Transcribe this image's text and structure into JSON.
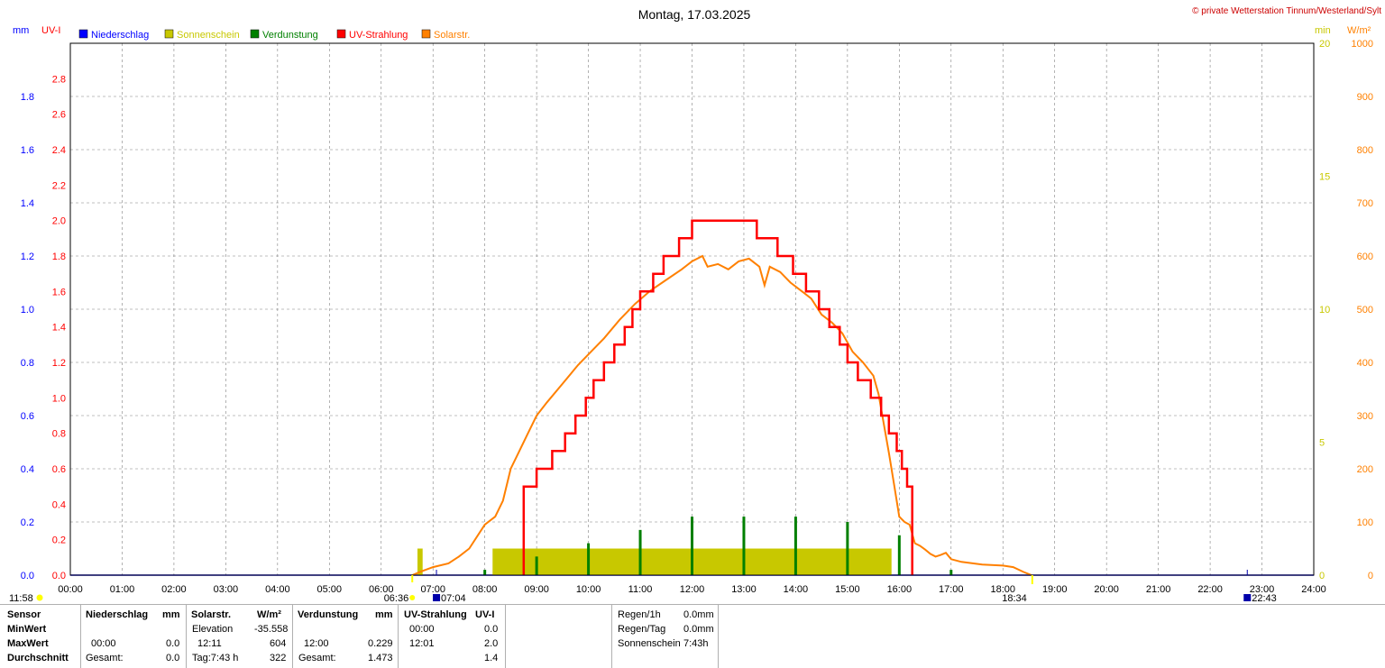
{
  "header": {
    "title": "Montag, 17.03.2025",
    "copyright": "© private Wetterstation Tinnum/Westerland/Sylt"
  },
  "axes": {
    "left_unit_mm": "mm",
    "left_unit_uv": "UV-I",
    "right_unit_min": "min",
    "right_unit_wm2": "W/m²",
    "mm_ticks": [
      "0.2",
      "0.4",
      "0.6",
      "0.8",
      "1.0",
      "1.2",
      "1.4",
      "1.6",
      "1.8"
    ],
    "uv_ticks": [
      "0.0",
      "0.2",
      "0.4",
      "0.6",
      "0.8",
      "1.0",
      "1.2",
      "1.4",
      "1.6",
      "1.8",
      "2.0",
      "2.2",
      "2.4",
      "2.6",
      "2.8"
    ],
    "min_ticks": [
      "0",
      "5",
      "10",
      "15",
      "20"
    ],
    "wm2_ticks": [
      "0",
      "100",
      "200",
      "300",
      "400",
      "500",
      "600",
      "700",
      "800",
      "900",
      "1000"
    ],
    "mm_zero": "0.0",
    "x_ticks": [
      "00:00",
      "01:00",
      "02:00",
      "03:00",
      "04:00",
      "05:00",
      "06:00",
      "07:00",
      "08:00",
      "09:00",
      "10:00",
      "11:00",
      "12:00",
      "13:00",
      "14:00",
      "15:00",
      "16:00",
      "17:00",
      "18:00",
      "19:00",
      "20:00",
      "21:00",
      "22:00",
      "23:00",
      "24:00"
    ]
  },
  "legend": [
    {
      "label": "Niederschlag",
      "color": "#0000ff"
    },
    {
      "label": "Sonnenschein",
      "color": "#c8c800"
    },
    {
      "label": "Verdunstung",
      "color": "#008000"
    },
    {
      "label": "UV-Strahlung",
      "color": "#ff0000"
    },
    {
      "label": "Solarstr.",
      "color": "#ff8000"
    }
  ],
  "markers": {
    "moon_time": "11:58",
    "sunrise": "06:36",
    "moonrise": "07:04",
    "sunset": "18:34",
    "moonset": "22:43"
  },
  "colors": {
    "grid": "#808080",
    "frame": "#000000",
    "mm_axis": "#0000ff",
    "uv_axis": "#ff0000",
    "min_axis": "#c8c800",
    "wm2_axis": "#ff8000"
  },
  "chart_data": {
    "type": "line",
    "title": "Montag, 17.03.2025",
    "x_range": [
      "00:00",
      "24:00"
    ],
    "ylim_mm": [
      0,
      2.0
    ],
    "ylim_uv": [
      0,
      3.0
    ],
    "ylim_sunshine_min": [
      0,
      20
    ],
    "ylim_solar_wm2": [
      0,
      1000
    ],
    "grid": true,
    "legend_position": "top-left",
    "series": [
      {
        "name": "Solarstr.",
        "axis": "W/m²",
        "points": [
          [
            6.6,
            0
          ],
          [
            6.8,
            8
          ],
          [
            7.0,
            15
          ],
          [
            7.3,
            22
          ],
          [
            7.5,
            35
          ],
          [
            7.7,
            50
          ],
          [
            7.9,
            80
          ],
          [
            8.0,
            95
          ],
          [
            8.2,
            110
          ],
          [
            8.35,
            140
          ],
          [
            8.5,
            200
          ],
          [
            8.65,
            230
          ],
          [
            8.8,
            260
          ],
          [
            9.0,
            300
          ],
          [
            9.2,
            325
          ],
          [
            9.5,
            360
          ],
          [
            9.8,
            395
          ],
          [
            10.0,
            415
          ],
          [
            10.3,
            445
          ],
          [
            10.6,
            480
          ],
          [
            10.9,
            510
          ],
          [
            11.2,
            535
          ],
          [
            11.5,
            555
          ],
          [
            11.8,
            575
          ],
          [
            12.0,
            590
          ],
          [
            12.2,
            600
          ],
          [
            12.3,
            580
          ],
          [
            12.5,
            585
          ],
          [
            12.7,
            575
          ],
          [
            12.9,
            590
          ],
          [
            13.1,
            595
          ],
          [
            13.3,
            580
          ],
          [
            13.4,
            545
          ],
          [
            13.5,
            580
          ],
          [
            13.7,
            570
          ],
          [
            13.9,
            550
          ],
          [
            14.1,
            535
          ],
          [
            14.3,
            520
          ],
          [
            14.5,
            490
          ],
          [
            14.7,
            475
          ],
          [
            14.9,
            455
          ],
          [
            15.1,
            420
          ],
          [
            15.3,
            400
          ],
          [
            15.5,
            375
          ],
          [
            15.6,
            340
          ],
          [
            15.7,
            285
          ],
          [
            15.8,
            230
          ],
          [
            15.9,
            170
          ],
          [
            16.0,
            110
          ],
          [
            16.1,
            100
          ],
          [
            16.2,
            95
          ],
          [
            16.3,
            60
          ],
          [
            16.4,
            55
          ],
          [
            16.5,
            48
          ],
          [
            16.6,
            40
          ],
          [
            16.7,
            35
          ],
          [
            16.8,
            38
          ],
          [
            16.9,
            42
          ],
          [
            17.0,
            30
          ],
          [
            17.2,
            25
          ],
          [
            17.6,
            20
          ],
          [
            18.0,
            18
          ],
          [
            18.2,
            15
          ],
          [
            18.4,
            6
          ],
          [
            18.55,
            0
          ]
        ]
      },
      {
        "name": "UV-Strahlung",
        "axis": "UV-I",
        "points": [
          [
            8.75,
            0
          ],
          [
            8.75,
            0.5
          ],
          [
            9.0,
            0.6
          ],
          [
            9.3,
            0.7
          ],
          [
            9.55,
            0.8
          ],
          [
            9.75,
            0.9
          ],
          [
            9.95,
            1.0
          ],
          [
            10.1,
            1.1
          ],
          [
            10.3,
            1.2
          ],
          [
            10.5,
            1.3
          ],
          [
            10.7,
            1.4
          ],
          [
            10.85,
            1.5
          ],
          [
            11.0,
            1.6
          ],
          [
            11.25,
            1.7
          ],
          [
            11.45,
            1.8
          ],
          [
            11.75,
            1.9
          ],
          [
            12.0,
            2.0
          ],
          [
            12.5,
            2.0
          ],
          [
            12.9,
            2.0
          ],
          [
            13.25,
            1.9
          ],
          [
            13.65,
            1.8
          ],
          [
            13.95,
            1.7
          ],
          [
            14.2,
            1.6
          ],
          [
            14.45,
            1.5
          ],
          [
            14.65,
            1.4
          ],
          [
            14.85,
            1.3
          ],
          [
            15.0,
            1.2
          ],
          [
            15.2,
            1.1
          ],
          [
            15.45,
            1.0
          ],
          [
            15.65,
            0.9
          ],
          [
            15.8,
            0.8
          ],
          [
            15.95,
            0.7
          ],
          [
            16.05,
            0.6
          ],
          [
            16.15,
            0.5
          ],
          [
            16.25,
            0.5
          ],
          [
            16.25,
            0
          ]
        ]
      },
      {
        "name": "Sonnenschein",
        "axis": "min",
        "bars": [
          [
            6.7,
            6.8,
            1.0
          ],
          [
            8.15,
            15.85,
            1.0
          ]
        ]
      },
      {
        "name": "Verdunstung",
        "axis": "mm",
        "spikes": [
          [
            8.0,
            0.02
          ],
          [
            9.0,
            0.07
          ],
          [
            10.0,
            0.12
          ],
          [
            11.0,
            0.17
          ],
          [
            12.0,
            0.22
          ],
          [
            13.0,
            0.22
          ],
          [
            14.0,
            0.22
          ],
          [
            15.0,
            0.2
          ],
          [
            16.0,
            0.15
          ],
          [
            17.0,
            0.02
          ]
        ]
      }
    ]
  },
  "table": {
    "headers": {
      "sensor": "Sensor",
      "niederschlag": "Niederschlag",
      "mm1": "mm",
      "solar": "Solarstr.",
      "wm2": "W/m²",
      "verdunstung": "Verdunstung",
      "mm2": "mm",
      "uv": "UV-Strahlung",
      "uvi": "UV-I"
    },
    "rows": {
      "minwert": "MinWert",
      "maxwert": "MaxWert",
      "durchschnitt": "Durchschnitt"
    },
    "solar_elevation_label": "Elevation",
    "solar_elevation_value": "-35.558",
    "uv_min_time": "00:00",
    "uv_min_value": "0.0",
    "nied_max_time": "00:00",
    "nied_max_value": "0.0",
    "solar_max_time": "12:11",
    "solar_max_value": "604",
    "verd_max_time": "12:00",
    "verd_max_value": "0.229",
    "uv_max_time": "12:01",
    "uv_max_value": "2.0",
    "nied_total_label": "Gesamt:",
    "nied_total_value": "0.0",
    "solar_day_label": "Tag:7:43 h",
    "solar_avg_value": "322",
    "verd_total_label": "Gesamt:",
    "verd_total_value": "1.473",
    "uv_avg_value": "1.4",
    "regen1h_label": "Regen/1h",
    "regen1h_value": "0.0mm",
    "regentag_label": "Regen/Tag",
    "regentag_value": "0.0mm",
    "sonnenschein_label": "Sonnenschein",
    "sonnenschein_value": "7:43h"
  }
}
